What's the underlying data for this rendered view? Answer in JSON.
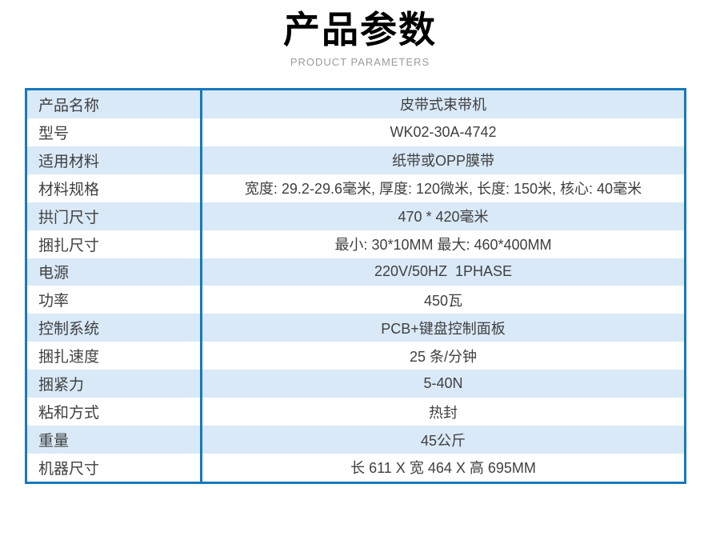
{
  "header": {
    "title": "产品参数",
    "subtitle": "PRODUCT PARAMETERS"
  },
  "colors": {
    "accent": "#1878be",
    "row-alt": "#d9e9f7",
    "row-plain": "#ffffff",
    "text": "#404040",
    "title": "#000000",
    "subtitle": "#9b9b9b"
  },
  "table": {
    "rows": [
      {
        "label": "产品名称",
        "value": "皮带式束带机"
      },
      {
        "label": "型号",
        "value": "WK02-30A-4742"
      },
      {
        "label": "适用材料",
        "value": "纸带或OPP膜带"
      },
      {
        "label": "材料规格",
        "value": "宽度: 29.2-29.6毫米, 厚度: 120微米, 长度: 150米, 核心: 40毫米"
      },
      {
        "label": "拱门尺寸",
        "value": "470 * 420毫米"
      },
      {
        "label": "捆扎尺寸",
        "value": "最小: 30*10MM 最大: 460*400MM"
      },
      {
        "label": "电源",
        "value": "220V/50HZ  1PHASE"
      },
      {
        "label": "功率",
        "value": "450瓦"
      },
      {
        "label": "控制系统",
        "value": "PCB+键盘控制面板"
      },
      {
        "label": "捆扎速度",
        "value": "25 条/分钟"
      },
      {
        "label": "捆紧力",
        "value": "5-40N"
      },
      {
        "label": "粘和方式",
        "value": "热封"
      },
      {
        "label": "重量",
        "value": "45公斤"
      },
      {
        "label": "机器尺寸",
        "value": "长 611 X 宽 464 X 高 695MM"
      }
    ]
  }
}
